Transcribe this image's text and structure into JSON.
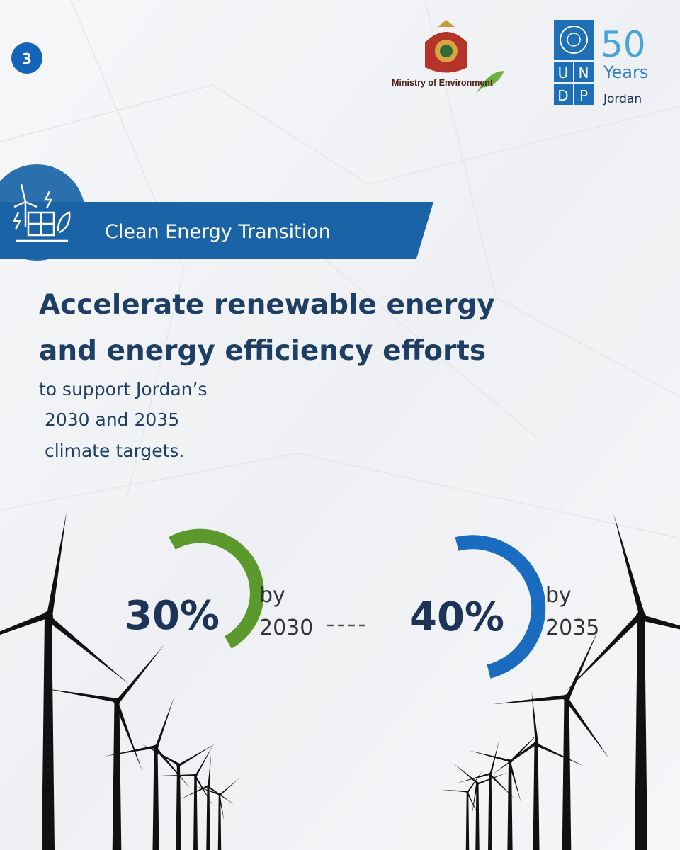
{
  "page_number": "3",
  "logos": {
    "ministry": "Ministry of Environment",
    "undp_letters": [
      "U",
      "N",
      "D",
      "P"
    ],
    "anniversary": "50",
    "years": "Years",
    "country": "Jordan"
  },
  "banner": {
    "title": "Clean Energy Transition"
  },
  "heading": {
    "lines": [
      "Accelerate renewable energy",
      "and energy efficiency efforts"
    ]
  },
  "subtitle": {
    "lines": [
      "to support Jordan’s",
      " 2030 and 2035",
      " climate targets."
    ]
  },
  "targets": [
    {
      "value": "30%",
      "by": "by",
      "year": "2030"
    },
    {
      "value": "40%",
      "by": "by",
      "year": "2035"
    }
  ]
}
